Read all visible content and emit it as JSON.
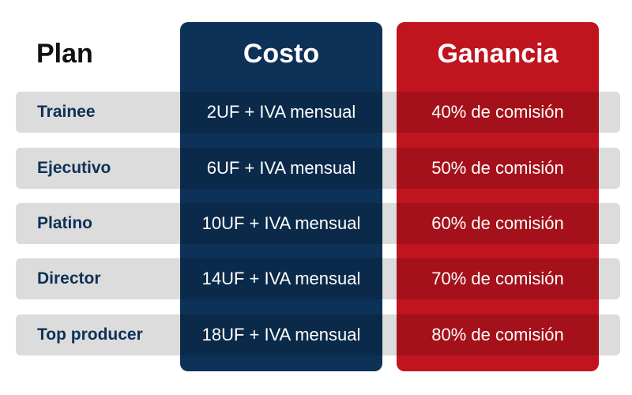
{
  "headers": {
    "plan": "Plan",
    "costo": "Costo",
    "ganancia": "Ganancia"
  },
  "rows": [
    {
      "plan": "Trainee",
      "costo": "2UF + IVA mensual",
      "ganancia": "40% de comisión"
    },
    {
      "plan": "Ejecutivo",
      "costo": "6UF + IVA mensual",
      "ganancia": "50% de comisión"
    },
    {
      "plan": "Platino",
      "costo": "10UF + IVA mensual",
      "ganancia": "60% de comisión"
    },
    {
      "plan": "Director",
      "costo": "14UF + IVA mensual",
      "ganancia": "70% de comisión"
    },
    {
      "plan": "Top producer",
      "costo": "18UF + IVA mensual",
      "ganancia": "80% de comisión"
    }
  ],
  "colors": {
    "costo_column": "#0d3157",
    "ganancia_column": "#c0141f",
    "row_band": "#dcdcdc",
    "plan_text": "#0d3157"
  }
}
